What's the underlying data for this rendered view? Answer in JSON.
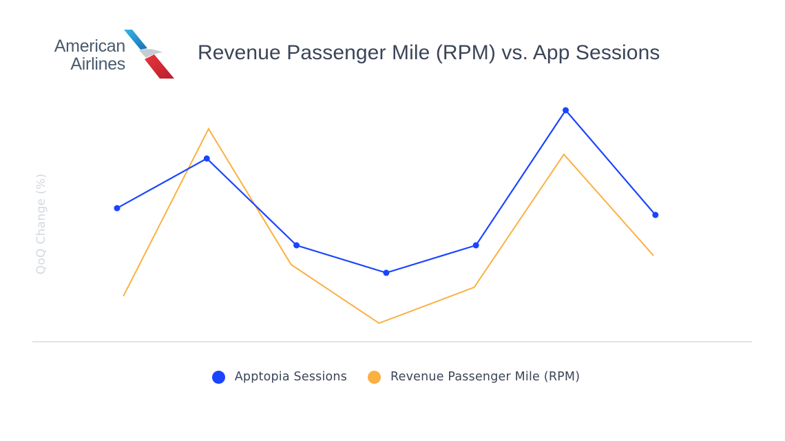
{
  "brand": {
    "name_line1": "American",
    "name_line2": "Airlines",
    "logo_icon": "american-airlines-flight-symbol"
  },
  "colors": {
    "series_sessions": "#1a44ff",
    "series_rpm": "#fbb040",
    "axis": "#dfe3ea",
    "ylabel": "#d3d8e0",
    "title": "#3b4558"
  },
  "chart_data": {
    "type": "line",
    "title": "Revenue Passenger Mile (RPM) vs. App Sessions",
    "xlabel": "",
    "ylabel": "QoQ Change (%)",
    "x_tick_labels": [],
    "y_tick_labels": [],
    "ylim": [
      0,
      100
    ],
    "y_units_note": "relative scale; no y-axis values shown",
    "grid": false,
    "legend_position": "bottom-center",
    "series": [
      {
        "name": "Apptopia Sessions",
        "color": "#1a44ff",
        "markers": true,
        "x": [
          0,
          1,
          2,
          3,
          4,
          5,
          6
        ],
        "values": [
          55.4,
          76.0,
          40.0,
          28.6,
          40.0,
          96.0,
          52.6
        ]
      },
      {
        "name": "Revenue Passenger Mile (RPM)",
        "color": "#fbb040",
        "markers": false,
        "x": [
          0.07,
          1.02,
          1.94,
          2.92,
          3.98,
          4.98,
          5.98
        ],
        "values": [
          18.9,
          88.3,
          32.0,
          7.7,
          22.6,
          77.7,
          35.7
        ]
      }
    ]
  }
}
